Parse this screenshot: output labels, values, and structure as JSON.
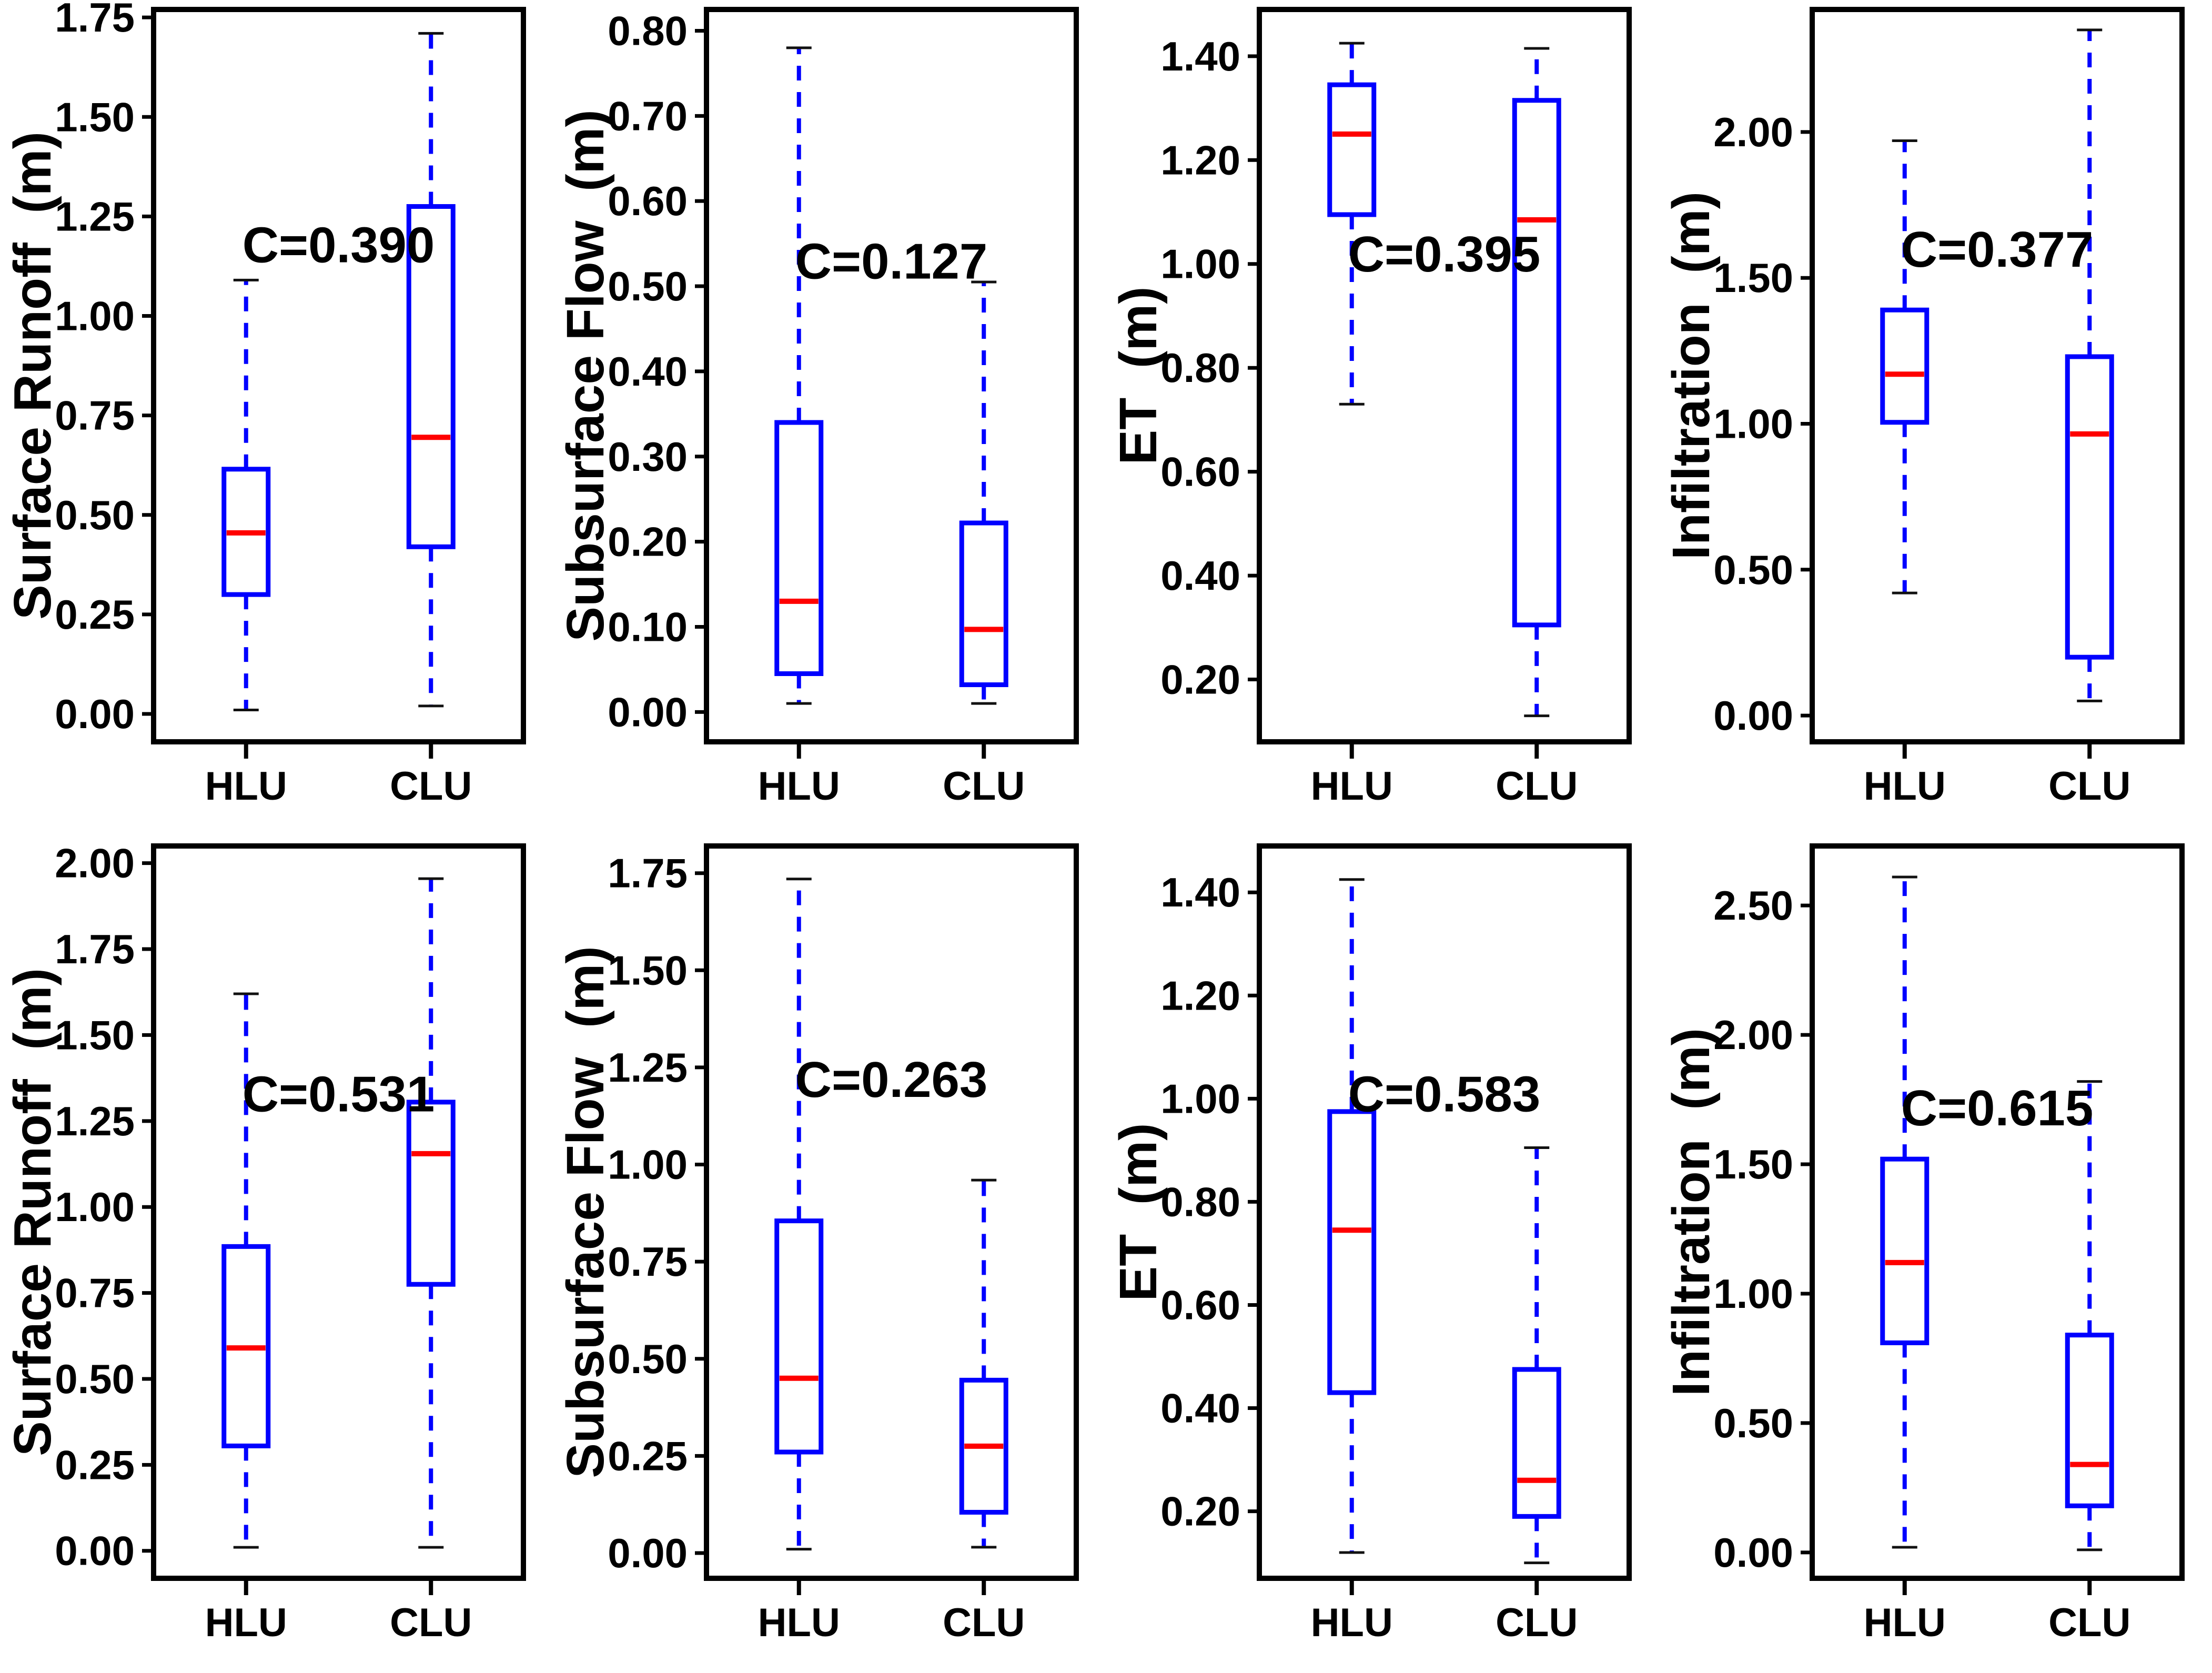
{
  "colors": {
    "background": "#ffffff",
    "axis": "#000000",
    "text": "#000000",
    "box": "#0000ff",
    "whisker": "#0000ff",
    "median": "#ff0000",
    "cap": "#111111"
  },
  "chart_data": [
    {
      "type": "box",
      "ylabel": "Surface Runoff  (m)",
      "annotation": "C=0.390",
      "annotation_y": 1.18,
      "ylim": [
        -0.07,
        1.77
      ],
      "yticks": [
        0.0,
        0.25,
        0.5,
        0.75,
        1.0,
        1.25,
        1.5,
        1.75
      ],
      "decimals": 2,
      "categories": [
        "HLU",
        "CLU"
      ],
      "series": [
        {
          "name": "HLU",
          "whislo": 0.01,
          "q1": 0.3,
          "med": 0.455,
          "q3": 0.615,
          "whishi": 1.09
        },
        {
          "name": "CLU",
          "whislo": 0.02,
          "q1": 0.42,
          "med": 0.695,
          "q3": 1.275,
          "whishi": 1.71
        }
      ]
    },
    {
      "type": "box",
      "ylabel": "Subsurface Flow  (m)",
      "annotation": "C=0.127",
      "annotation_y": 0.53,
      "ylim": [
        -0.035,
        0.825
      ],
      "yticks": [
        0.0,
        0.1,
        0.2,
        0.3,
        0.4,
        0.5,
        0.6,
        0.7,
        0.8
      ],
      "decimals": 2,
      "categories": [
        "HLU",
        "CLU"
      ],
      "series": [
        {
          "name": "HLU",
          "whislo": 0.01,
          "q1": 0.045,
          "med": 0.13,
          "q3": 0.34,
          "whishi": 0.78
        },
        {
          "name": "CLU",
          "whislo": 0.01,
          "q1": 0.032,
          "med": 0.097,
          "q3": 0.222,
          "whishi": 0.505
        }
      ]
    },
    {
      "type": "box",
      "ylabel": "ET  (m)",
      "annotation": "C=0.395",
      "annotation_y": 1.02,
      "ylim": [
        0.08,
        1.49
      ],
      "yticks": [
        0.2,
        0.4,
        0.6,
        0.8,
        1.0,
        1.2,
        1.4
      ],
      "decimals": 2,
      "categories": [
        "HLU",
        "CLU"
      ],
      "series": [
        {
          "name": "HLU",
          "whislo": 0.73,
          "q1": 1.095,
          "med": 1.25,
          "q3": 1.345,
          "whishi": 1.425
        },
        {
          "name": "CLU",
          "whislo": 0.13,
          "q1": 0.305,
          "med": 1.085,
          "q3": 1.315,
          "whishi": 1.415
        }
      ]
    },
    {
      "type": "box",
      "ylabel": "Infiltration  (m)",
      "annotation": "C=0.377",
      "annotation_y": 1.6,
      "ylim": [
        -0.09,
        2.42
      ],
      "yticks": [
        0.0,
        0.5,
        1.0,
        1.5,
        2.0
      ],
      "decimals": 2,
      "categories": [
        "HLU",
        "CLU"
      ],
      "series": [
        {
          "name": "HLU",
          "whislo": 0.42,
          "q1": 1.005,
          "med": 1.17,
          "q3": 1.39,
          "whishi": 1.97
        },
        {
          "name": "CLU",
          "whislo": 0.05,
          "q1": 0.2,
          "med": 0.965,
          "q3": 1.23,
          "whishi": 2.35
        }
      ]
    },
    {
      "type": "box",
      "ylabel": "Surface Runoff  (m)",
      "annotation": "C=0.531",
      "annotation_y": 1.33,
      "ylim": [
        -0.08,
        2.05
      ],
      "yticks": [
        0.0,
        0.25,
        0.5,
        0.75,
        1.0,
        1.25,
        1.5,
        1.75,
        2.0
      ],
      "decimals": 2,
      "categories": [
        "HLU",
        "CLU"
      ],
      "series": [
        {
          "name": "HLU",
          "whislo": 0.01,
          "q1": 0.305,
          "med": 0.59,
          "q3": 0.885,
          "whishi": 1.62
        },
        {
          "name": "CLU",
          "whislo": 0.01,
          "q1": 0.775,
          "med": 1.155,
          "q3": 1.305,
          "whishi": 1.955
        }
      ]
    },
    {
      "type": "box",
      "ylabel": "Subsurface Flow  (m)",
      "annotation": "C=0.263",
      "annotation_y": 1.22,
      "ylim": [
        -0.065,
        1.82
      ],
      "yticks": [
        0.0,
        0.25,
        0.5,
        0.75,
        1.0,
        1.25,
        1.5,
        1.75
      ],
      "decimals": 2,
      "categories": [
        "HLU",
        "CLU"
      ],
      "series": [
        {
          "name": "HLU",
          "whislo": 0.01,
          "q1": 0.26,
          "med": 0.45,
          "q3": 0.855,
          "whishi": 1.735
        },
        {
          "name": "CLU",
          "whislo": 0.015,
          "q1": 0.105,
          "med": 0.275,
          "q3": 0.445,
          "whishi": 0.96
        }
      ]
    },
    {
      "type": "box",
      "ylabel": "ET  (m)",
      "annotation": "C=0.583",
      "annotation_y": 1.01,
      "ylim": [
        0.07,
        1.49
      ],
      "yticks": [
        0.2,
        0.4,
        0.6,
        0.8,
        1.0,
        1.2,
        1.4
      ],
      "decimals": 2,
      "categories": [
        "HLU",
        "CLU"
      ],
      "series": [
        {
          "name": "HLU",
          "whislo": 0.12,
          "q1": 0.43,
          "med": 0.745,
          "q3": 0.975,
          "whishi": 1.425
        },
        {
          "name": "CLU",
          "whislo": 0.1,
          "q1": 0.19,
          "med": 0.26,
          "q3": 0.475,
          "whishi": 0.905
        }
      ]
    },
    {
      "type": "box",
      "ylabel": "Infiltration  (m)",
      "annotation": "C=0.615",
      "annotation_y": 1.72,
      "ylim": [
        -0.1,
        2.73
      ],
      "yticks": [
        0.0,
        0.5,
        1.0,
        1.5,
        2.0,
        2.5
      ],
      "decimals": 2,
      "categories": [
        "HLU",
        "CLU"
      ],
      "series": [
        {
          "name": "HLU",
          "whislo": 0.02,
          "q1": 0.81,
          "med": 1.12,
          "q3": 1.52,
          "whishi": 2.61
        },
        {
          "name": "CLU",
          "whislo": 0.01,
          "q1": 0.18,
          "med": 0.34,
          "q3": 0.84,
          "whishi": 1.82
        }
      ]
    }
  ]
}
